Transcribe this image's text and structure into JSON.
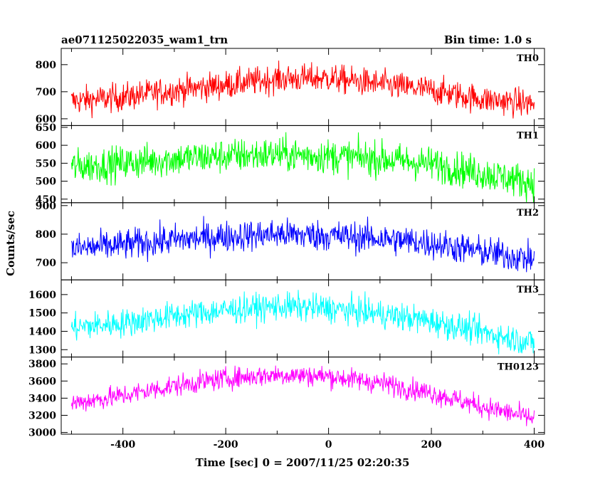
{
  "header": {
    "title": "ae071125022035_wam1_trn",
    "bin_time": "Bin time: 1.0 s"
  },
  "chart_data": {
    "type": "line",
    "title": "ae071125022035_wam1_trn",
    "xlabel": "Time [sec] 0 = 2007/11/25 02:20:35",
    "ylabel": "Counts/sec",
    "xlim": [
      -520,
      420
    ],
    "xticks": [
      -400,
      -200,
      0,
      200,
      400
    ],
    "x_step": 1,
    "x_range": [
      -500,
      400
    ],
    "grid": false,
    "panels": [
      {
        "name": "TH0",
        "color": "#ff0000",
        "ylim": [
          575,
          860
        ],
        "yticks": [
          600,
          700,
          800
        ],
        "x": [
          -500,
          -400,
          -300,
          -200,
          -100,
          0,
          100,
          200,
          300,
          400
        ],
        "values": [
          665,
          680,
          705,
          725,
          748,
          750,
          728,
          705,
          672,
          655
        ],
        "noise": 26
      },
      {
        "name": "TH1",
        "color": "#00ff00",
        "ylim": [
          440,
          655
        ],
        "yticks": [
          450,
          500,
          550,
          600,
          650
        ],
        "x": [
          -500,
          -400,
          -300,
          -200,
          -100,
          0,
          100,
          200,
          300,
          400
        ],
        "values": [
          540,
          550,
          562,
          570,
          575,
          570,
          562,
          548,
          522,
          495
        ],
        "noise": 24
      },
      {
        "name": "TH2",
        "color": "#0000ff",
        "ylim": [
          640,
          910
        ],
        "yticks": [
          700,
          800,
          900
        ],
        "x": [
          -500,
          -400,
          -300,
          -200,
          -100,
          0,
          100,
          200,
          300,
          400
        ],
        "values": [
          748,
          762,
          780,
          792,
          800,
          795,
          785,
          768,
          738,
          712
        ],
        "noise": 27
      },
      {
        "name": "TH3",
        "color": "#00ffff",
        "ylim": [
          1260,
          1680
        ],
        "yticks": [
          1300,
          1400,
          1500,
          1600
        ],
        "x": [
          -500,
          -400,
          -300,
          -200,
          -100,
          0,
          100,
          200,
          300,
          400
        ],
        "values": [
          1420,
          1445,
          1485,
          1515,
          1535,
          1525,
          1495,
          1455,
          1395,
          1335
        ],
        "noise": 38
      },
      {
        "name": "TH0123",
        "color": "#ff00ff",
        "ylim": [
          2980,
          3880
        ],
        "yticks": [
          3000,
          3200,
          3400,
          3600,
          3800
        ],
        "x": [
          -500,
          -400,
          -300,
          -200,
          -100,
          0,
          100,
          200,
          300,
          400
        ],
        "values": [
          3340,
          3430,
          3545,
          3630,
          3675,
          3655,
          3580,
          3460,
          3300,
          3160
        ],
        "noise": 62
      }
    ]
  }
}
